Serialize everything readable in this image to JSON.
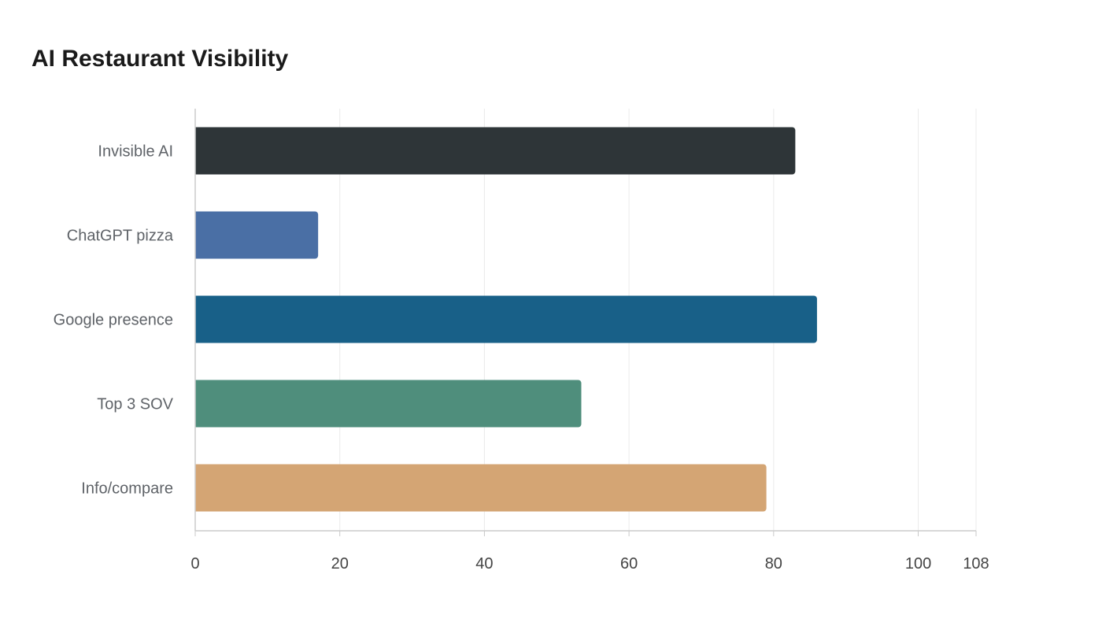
{
  "chart_data": {
    "type": "bar",
    "orientation": "horizontal",
    "title": "AI Restaurant Visibility",
    "categories": [
      "Invisible AI",
      "ChatGPT pizza",
      "Google presence",
      "Top 3 SOV",
      "Info/compare"
    ],
    "values": [
      83,
      17,
      86,
      53.4,
      79
    ],
    "colors": [
      "#2e3538",
      "#4a6fa5",
      "#186088",
      "#4f8e7c",
      "#d4a574"
    ],
    "xlim": [
      0,
      108
    ],
    "xticks": [
      0,
      20,
      40,
      60,
      80,
      100,
      108
    ],
    "grid": true,
    "xlabel": "",
    "ylabel": ""
  }
}
